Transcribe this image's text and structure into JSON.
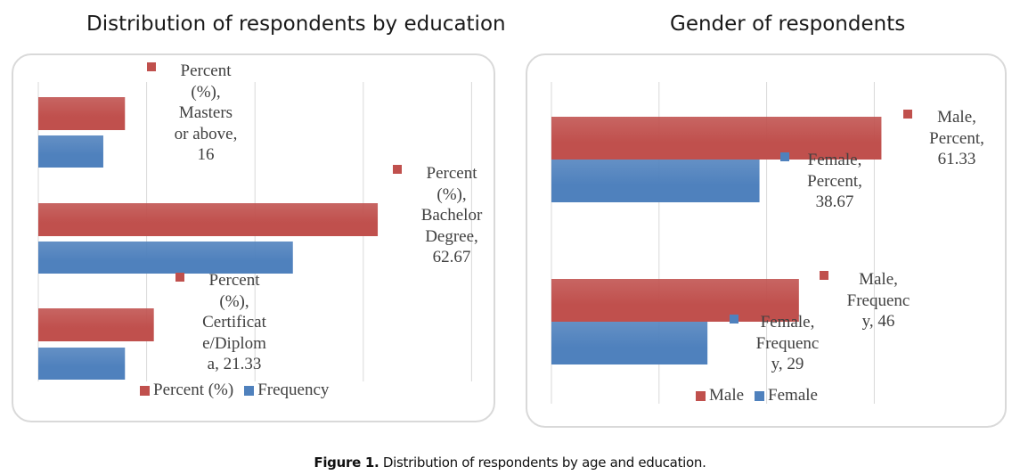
{
  "caption": {
    "prefix": "Figure 1.",
    "text": " Distribution of respondents by age and education."
  },
  "colors": {
    "red": "#c0504d",
    "blue": "#4f81bd",
    "grid": "#d9d9d9"
  },
  "chart_data": [
    {
      "type": "bar",
      "orientation": "horizontal",
      "title": "Distribution of respondents by education",
      "categories": [
        "Masters or above",
        "Bachelor Degree",
        "Certificate/Diploma"
      ],
      "series": [
        {
          "name": "Percent (%)",
          "values": [
            16,
            62.67,
            21.33
          ],
          "color": "#c0504d"
        },
        {
          "name": "Frequency",
          "values": [
            12,
            47,
            16
          ],
          "color": "#4f81bd"
        }
      ],
      "data_labels": [
        "Percent\n(%),\nMasters\nor above,\n16",
        "Percent\n(%),\nBachelor\nDegree,\n62.67",
        "Percent\n(%),\nCertificat\ne/Diplom\na, 21.33"
      ],
      "xlim": [
        0,
        80
      ],
      "grid": true,
      "legend": "bottom"
    },
    {
      "type": "bar",
      "orientation": "horizontal",
      "title": "Gender of respondents",
      "categories": [
        "Percent",
        "Frequency"
      ],
      "series": [
        {
          "name": "Male",
          "values": [
            61.33,
            46
          ],
          "color": "#c0504d"
        },
        {
          "name": "Female",
          "values": [
            38.67,
            29
          ],
          "color": "#4f81bd"
        }
      ],
      "data_labels": [
        "Male,\nPercent,\n61.33",
        "Female,\nPercent,\n38.67",
        "Male,\nFrequenc\ny, 46",
        "Female,\nFrequenc\ny, 29"
      ],
      "xlim": [
        0,
        70
      ],
      "grid": true,
      "legend": "bottom"
    }
  ]
}
